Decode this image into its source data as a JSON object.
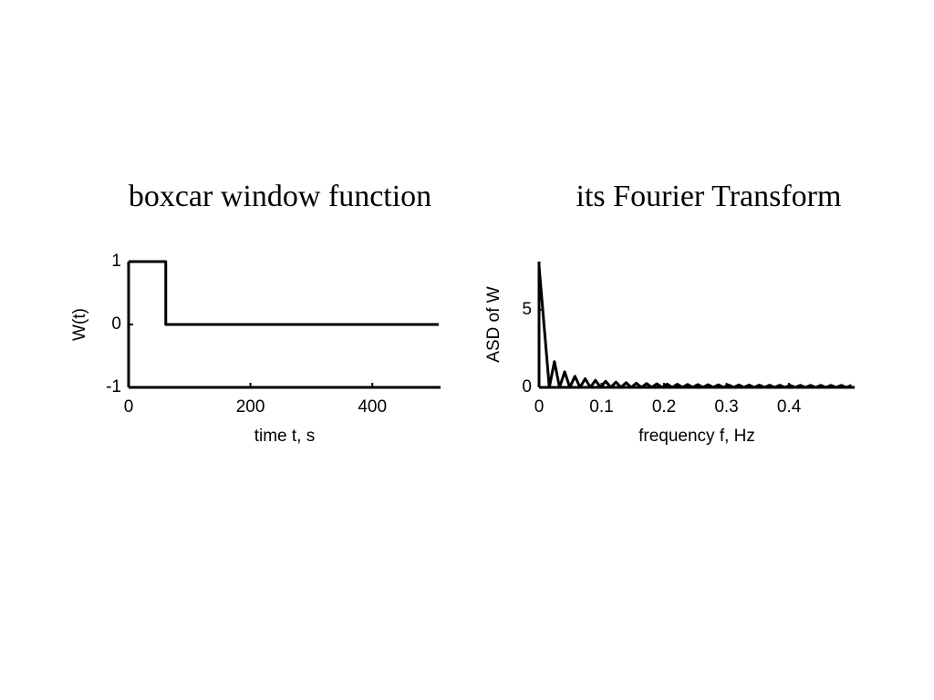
{
  "chart_data": [
    {
      "type": "line",
      "title": "boxcar window function",
      "xlabel": "time t, s",
      "ylabel": "W(t)",
      "x": [
        0,
        61,
        61,
        509
      ],
      "series": [
        {
          "color": "#000000",
          "values": [
            1,
            1,
            0,
            0
          ]
        }
      ],
      "xlim": [
        0,
        512
      ],
      "ylim": [
        -1,
        1
      ],
      "xticks": [
        0,
        200,
        400
      ],
      "yticks": [
        -1,
        0,
        1
      ]
    },
    {
      "type": "line",
      "title": "its Fourier Transform",
      "xlabel": "frequency f, Hz",
      "ylabel": "ASD of W",
      "x": [
        0,
        0.0164,
        0.0246,
        0.0328,
        0.041,
        0.0492,
        0.0574,
        0.0656,
        0.0738,
        0.082,
        0.0902,
        0.0984,
        0.1066,
        0.1148,
        0.123,
        0.1311,
        0.1393,
        0.1475,
        0.1557,
        0.1639,
        0.1721,
        0.1803,
        0.1885,
        0.1967,
        0.2049,
        0.2131,
        0.2213,
        0.2295,
        0.2377,
        0.2459,
        0.2541,
        0.2623,
        0.2705,
        0.2787,
        0.2869,
        0.2951,
        0.3033,
        0.3115,
        0.3197,
        0.3279,
        0.3361,
        0.3443,
        0.3525,
        0.3607,
        0.3689,
        0.377,
        0.3852,
        0.3934,
        0.4016,
        0.4098,
        0.418,
        0.4262,
        0.4344,
        0.4426,
        0.4508,
        0.459,
        0.4672,
        0.4754,
        0.4836,
        0.4918,
        0.5
      ],
      "series": [
        {
          "color": "#000000",
          "values": [
            7.81,
            0,
            1.66,
            0,
            1.0,
            0,
            0.714,
            0,
            0.557,
            0,
            0.458,
            0,
            0.39,
            0,
            0.34,
            0,
            0.302,
            0,
            0.272,
            0,
            0.249,
            0,
            0.229,
            0,
            0.213,
            0,
            0.2,
            0,
            0.189,
            0,
            0.179,
            0,
            0.17,
            0,
            0.163,
            0,
            0.157,
            0,
            0.152,
            0,
            0.147,
            0,
            0.143,
            0,
            0.14,
            0,
            0.137,
            0,
            0.134,
            0,
            0.132,
            0,
            0.131,
            0,
            0.13,
            0,
            0.129,
            0,
            0.128,
            0,
            0.128
          ]
        }
      ],
      "xlim": [
        0,
        0.505
      ],
      "ylim": [
        0,
        8.1
      ],
      "xticks": [
        0,
        0.1,
        0.2,
        0.3,
        0.4
      ],
      "yticks": [
        0,
        5
      ]
    }
  ]
}
